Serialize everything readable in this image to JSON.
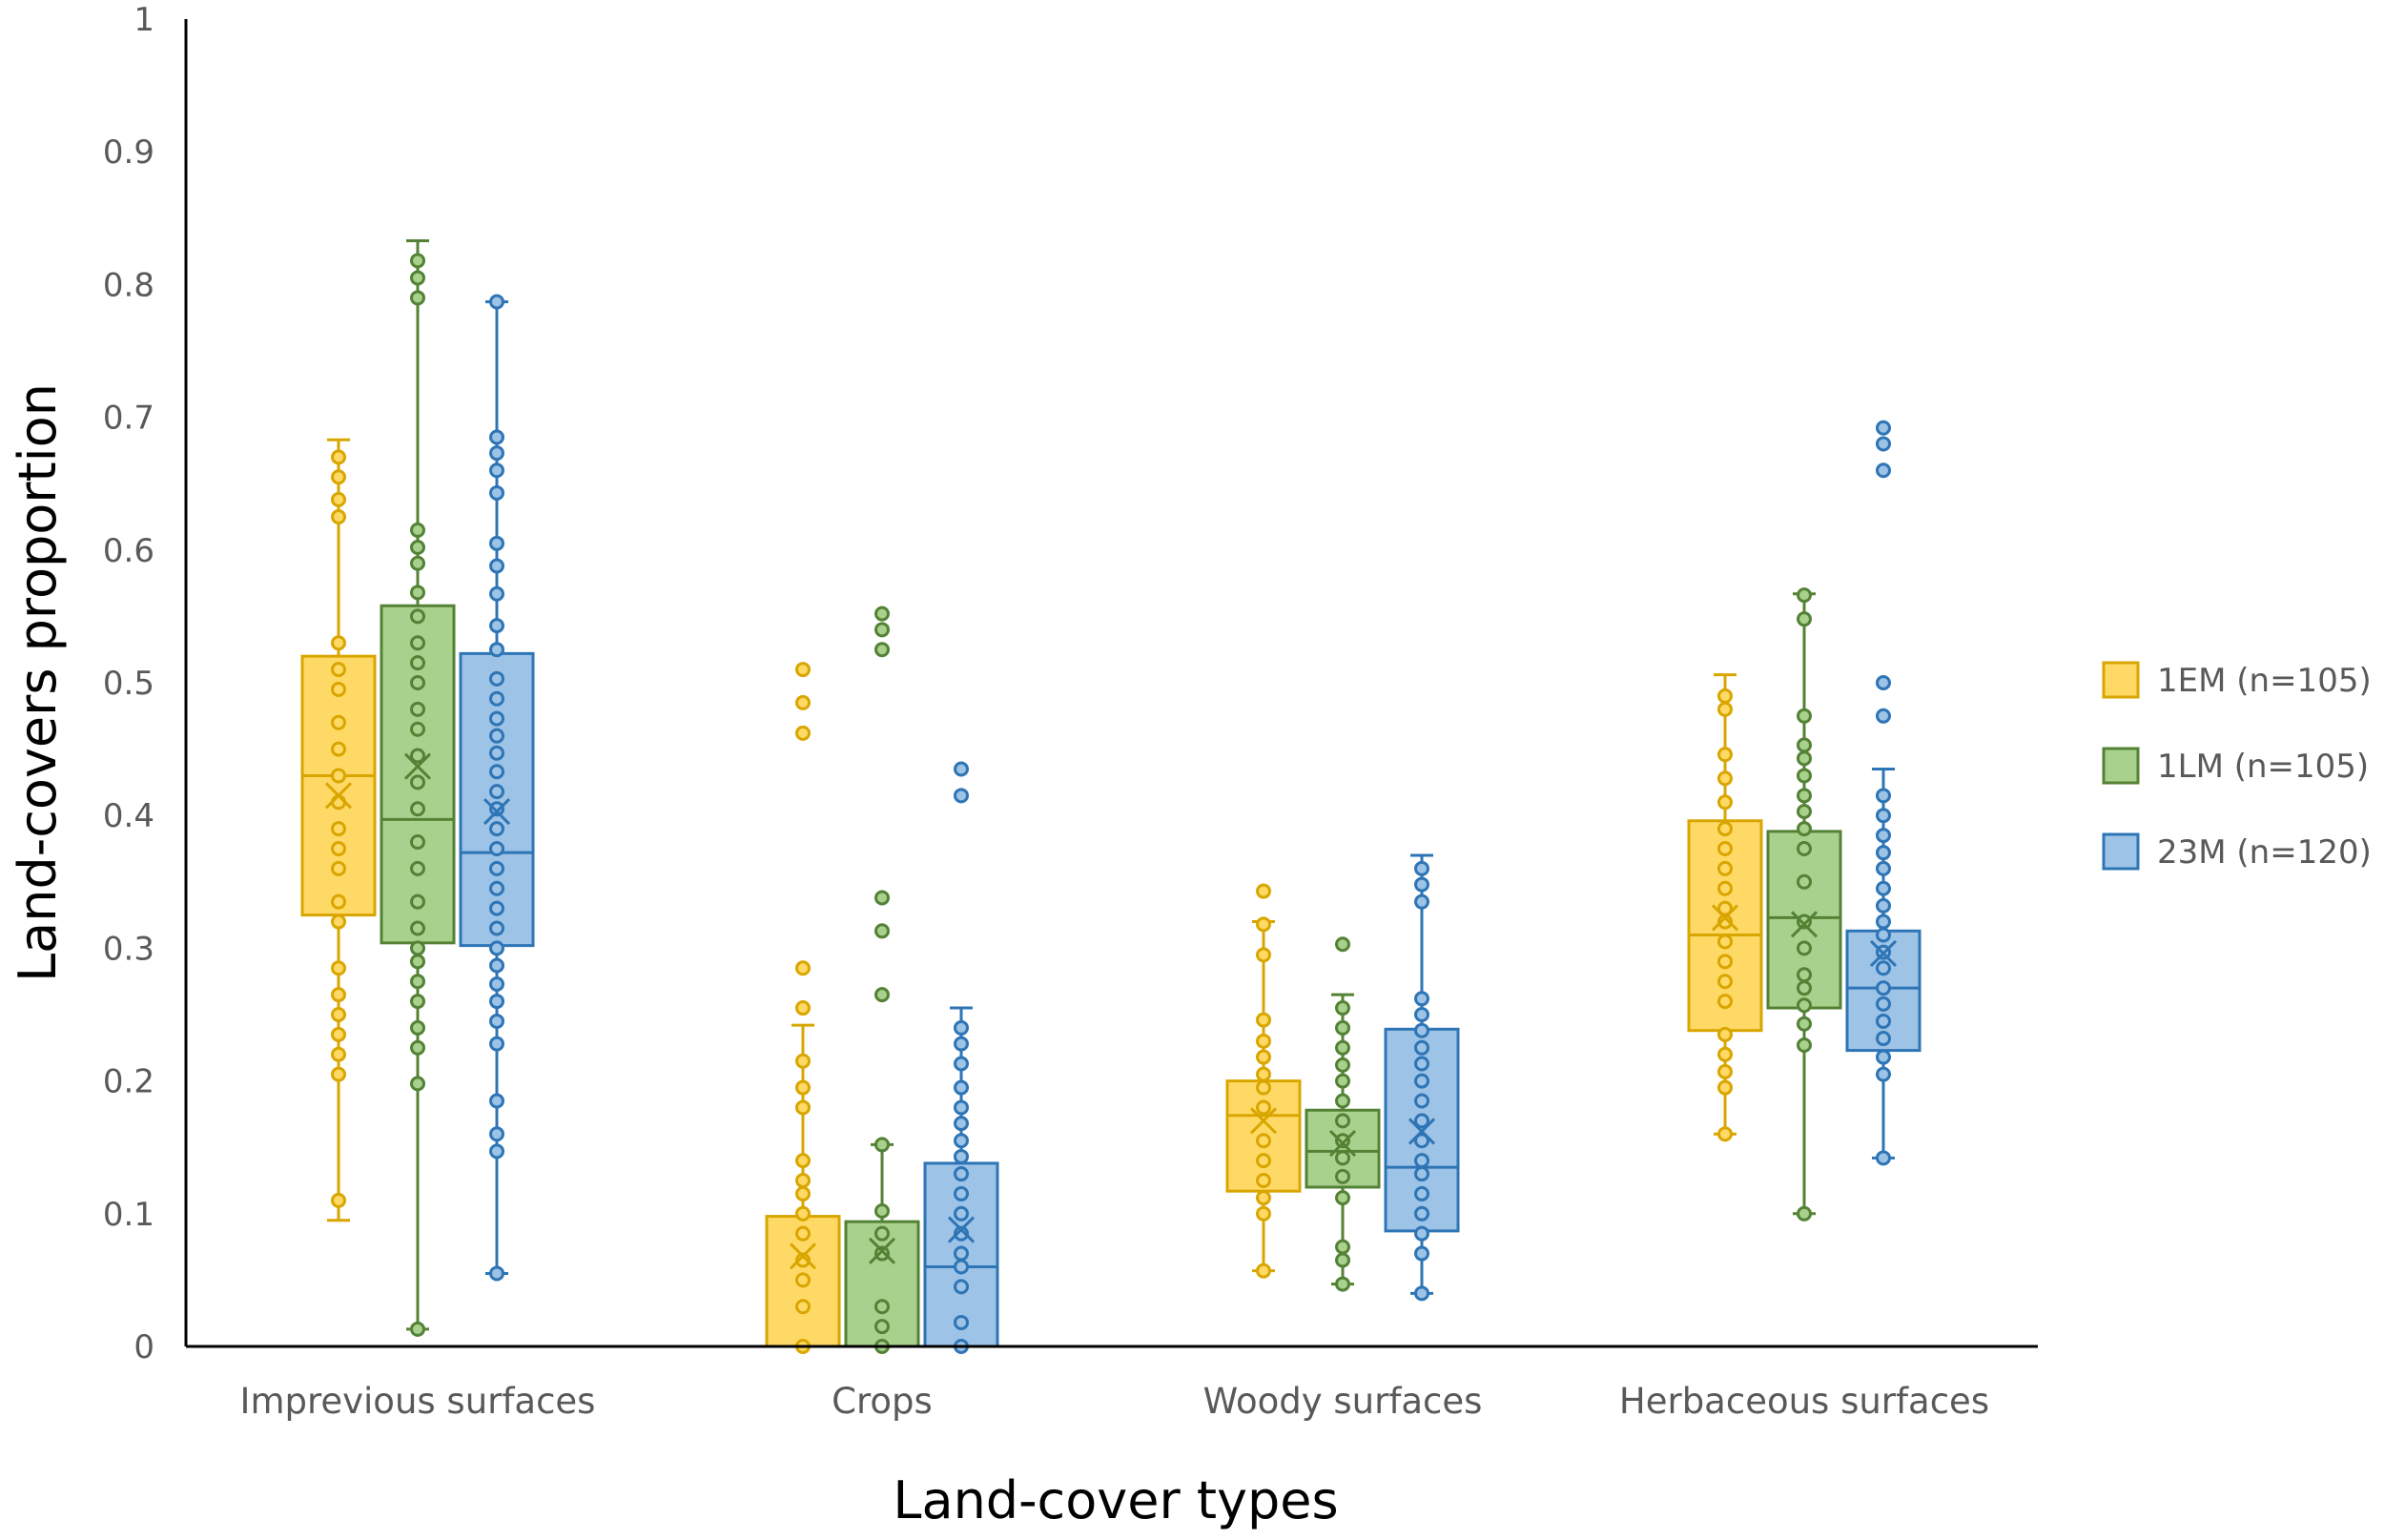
{
  "chart_data": {
    "type": "box",
    "title": "",
    "xlabel": "Land-cover types",
    "ylabel": "Land-covers proportion",
    "ylim": [
      0,
      1
    ],
    "yticks": [
      "0",
      "0.1",
      "0.2",
      "0.3",
      "0.4",
      "0.5",
      "0.6",
      "0.7",
      "0.8",
      "0.9",
      "1"
    ],
    "grid": false,
    "legend_position": "right",
    "categories": [
      "Imprevious surfaces",
      "Crops",
      "Woody surfaces",
      "Herbaceous surfaces"
    ],
    "series": [
      {
        "name": "1EM (n=105)",
        "fill": "#FFD966",
        "stroke": "#D9A600",
        "boxes": [
          {
            "min": 0.095,
            "q1": 0.325,
            "median": 0.43,
            "q3": 0.52,
            "max": 0.683,
            "mean": 0.415,
            "points": [
              0.11,
              0.205,
              0.22,
              0.235,
              0.25,
              0.265,
              0.285,
              0.32,
              0.335,
              0.36,
              0.375,
              0.39,
              0.41,
              0.43,
              0.45,
              0.47,
              0.495,
              0.51,
              0.53,
              0.625,
              0.638,
              0.655,
              0.67
            ]
          },
          {
            "min": 0.0,
            "q1": 0.0,
            "median": 0.0,
            "q3": 0.098,
            "max": 0.242,
            "mean": 0.068,
            "points": [
              0.0,
              0.03,
              0.05,
              0.065,
              0.085,
              0.1,
              0.115,
              0.125,
              0.14,
              0.18,
              0.195,
              0.215,
              0.255,
              0.285,
              0.462,
              0.485,
              0.51
            ]
          },
          {
            "min": 0.057,
            "q1": 0.117,
            "median": 0.174,
            "q3": 0.2,
            "max": 0.32,
            "mean": 0.17,
            "points": [
              0.057,
              0.1,
              0.112,
              0.125,
              0.14,
              0.155,
              0.18,
              0.195,
              0.205,
              0.218,
              0.23,
              0.246,
              0.295,
              0.318,
              0.343
            ]
          },
          {
            "min": 0.16,
            "q1": 0.238,
            "median": 0.31,
            "q3": 0.396,
            "max": 0.506,
            "mean": 0.323,
            "points": [
              0.16,
              0.195,
              0.207,
              0.22,
              0.235,
              0.26,
              0.275,
              0.29,
              0.305,
              0.32,
              0.33,
              0.345,
              0.36,
              0.375,
              0.39,
              0.41,
              0.428,
              0.446,
              0.48,
              0.49
            ]
          }
        ]
      },
      {
        "name": "1LM (n=105)",
        "fill": "#A9D18E",
        "stroke": "#548235",
        "boxes": [
          {
            "min": 0.013,
            "q1": 0.304,
            "median": 0.397,
            "q3": 0.558,
            "max": 0.833,
            "mean": 0.437,
            "points": [
              0.013,
              0.198,
              0.225,
              0.24,
              0.26,
              0.275,
              0.29,
              0.3,
              0.315,
              0.335,
              0.36,
              0.38,
              0.405,
              0.425,
              0.445,
              0.465,
              0.48,
              0.5,
              0.515,
              0.53,
              0.55,
              0.568,
              0.59,
              0.602,
              0.615,
              0.79,
              0.805,
              0.818
            ]
          },
          {
            "min": 0.0,
            "q1": 0.0,
            "median": 0.0,
            "q3": 0.094,
            "max": 0.152,
            "mean": 0.072,
            "points": [
              0.0,
              0.015,
              0.03,
              0.07,
              0.085,
              0.102,
              0.152,
              0.265,
              0.313,
              0.338,
              0.525,
              0.54,
              0.552
            ]
          },
          {
            "min": 0.047,
            "q1": 0.12,
            "median": 0.147,
            "q3": 0.178,
            "max": 0.265,
            "mean": 0.153,
            "points": [
              0.047,
              0.065,
              0.075,
              0.112,
              0.128,
              0.142,
              0.155,
              0.17,
              0.185,
              0.2,
              0.212,
              0.225,
              0.24,
              0.255,
              0.303
            ]
          },
          {
            "min": 0.1,
            "q1": 0.255,
            "median": 0.323,
            "q3": 0.388,
            "max": 0.567,
            "mean": 0.318,
            "points": [
              0.1,
              0.227,
              0.243,
              0.257,
              0.27,
              0.28,
              0.3,
              0.32,
              0.35,
              0.375,
              0.39,
              0.403,
              0.415,
              0.43,
              0.443,
              0.453,
              0.475,
              0.548,
              0.566
            ]
          }
        ]
      },
      {
        "name": "23M (n=120)",
        "fill": "#9DC3E6",
        "stroke": "#2E75B6",
        "boxes": [
          {
            "min": 0.055,
            "q1": 0.302,
            "median": 0.372,
            "q3": 0.522,
            "max": 0.787,
            "mean": 0.403,
            "points": [
              0.055,
              0.147,
              0.16,
              0.185,
              0.228,
              0.245,
              0.26,
              0.273,
              0.287,
              0.3,
              0.315,
              0.33,
              0.345,
              0.36,
              0.375,
              0.39,
              0.405,
              0.418,
              0.433,
              0.447,
              0.46,
              0.473,
              0.488,
              0.503,
              0.525,
              0.543,
              0.567,
              0.588,
              0.605,
              0.643,
              0.66,
              0.673,
              0.685,
              0.787
            ]
          },
          {
            "min": 0.0,
            "q1": 0.0,
            "median": 0.06,
            "q3": 0.138,
            "max": 0.255,
            "mean": 0.088,
            "points": [
              0.0,
              0.018,
              0.045,
              0.06,
              0.07,
              0.085,
              0.1,
              0.115,
              0.13,
              0.143,
              0.155,
              0.168,
              0.18,
              0.195,
              0.213,
              0.228,
              0.24,
              0.415,
              0.435
            ]
          },
          {
            "min": 0.04,
            "q1": 0.087,
            "median": 0.135,
            "q3": 0.239,
            "max": 0.37,
            "mean": 0.162,
            "points": [
              0.04,
              0.07,
              0.085,
              0.1,
              0.115,
              0.13,
              0.14,
              0.155,
              0.17,
              0.185,
              0.2,
              0.213,
              0.225,
              0.238,
              0.25,
              0.262,
              0.335,
              0.348,
              0.36
            ]
          },
          {
            "min": 0.142,
            "q1": 0.223,
            "median": 0.27,
            "q3": 0.313,
            "max": 0.435,
            "mean": 0.296,
            "points": [
              0.142,
              0.205,
              0.218,
              0.232,
              0.245,
              0.258,
              0.27,
              0.285,
              0.297,
              0.31,
              0.32,
              0.332,
              0.345,
              0.36,
              0.372,
              0.385,
              0.4,
              0.415,
              0.475,
              0.5,
              0.66,
              0.68,
              0.692
            ]
          }
        ]
      }
    ]
  }
}
